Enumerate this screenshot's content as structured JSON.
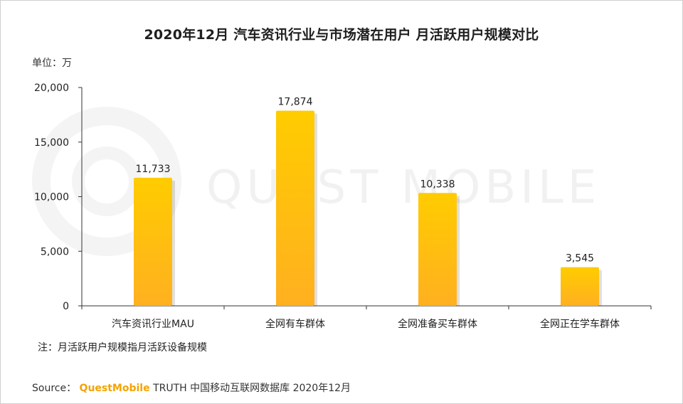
{
  "chart_data": {
    "type": "bar",
    "title": "2020年12月 汽车资讯行业与市场潜在用户 月活跃用户规模对比",
    "unit_label": "单位：万",
    "categories": [
      "汽车资讯行业MAU",
      "全网有车群体",
      "全网准备买车群体",
      "全网正在学车群体"
    ],
    "values": [
      11733,
      17874,
      10338,
      3545
    ],
    "value_labels": [
      "11,733",
      "17,874",
      "10,338",
      "3,545"
    ],
    "yticks": [
      0,
      5000,
      10000,
      15000,
      20000
    ],
    "ytick_labels": [
      "0",
      "5,000",
      "10,000",
      "15,000",
      "20,000"
    ],
    "ylim": [
      0,
      20000
    ],
    "xlabel": "",
    "ylabel": "",
    "grid": false,
    "colors": {
      "bar_top": "#ffcc00",
      "bar_bottom": "#ffb020",
      "axis": "#333333"
    }
  },
  "note": "注：月活跃用户规模指月活跃设备规模",
  "source": {
    "prefix": "Source：",
    "brand": "QuestMobile",
    "text": "TRUTH 中国移动互联网数据库 2020年12月"
  },
  "watermark": {
    "text": "QUEST MOBILE"
  }
}
